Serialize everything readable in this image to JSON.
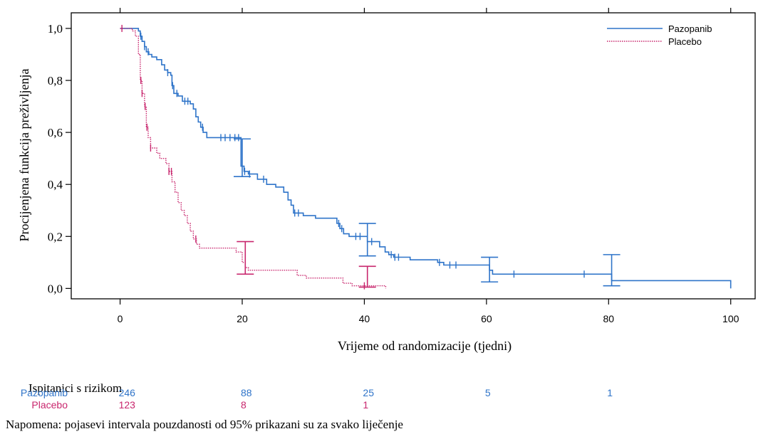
{
  "chart_data": {
    "type": "line",
    "xlabel": "Vrijeme od randomizacije (tjedni)",
    "ylabel": "Procijenjena funkcija preživljenja",
    "xlim": [
      -8,
      104
    ],
    "ylim": [
      -0.04,
      1.06
    ],
    "xticks": [
      0,
      20,
      40,
      60,
      80,
      100
    ],
    "yticks": [
      0.0,
      0.2,
      0.4,
      0.6,
      0.8,
      1.0
    ],
    "ytick_labels": [
      "0,0",
      "0,2",
      "0,4",
      "0,6",
      "0,8",
      "1,0"
    ],
    "legend_position": "top-right",
    "series": [
      {
        "name": "Pazopanib",
        "color": "#2f74c9",
        "dash": "solid",
        "points": [
          [
            0,
            1.0
          ],
          [
            2.5,
            1.0
          ],
          [
            3.0,
            0.99
          ],
          [
            3.3,
            0.97
          ],
          [
            3.6,
            0.95
          ],
          [
            4.0,
            0.93
          ],
          [
            4.3,
            0.91
          ],
          [
            4.7,
            0.9
          ],
          [
            5.2,
            0.89
          ],
          [
            6.0,
            0.88
          ],
          [
            6.8,
            0.86
          ],
          [
            7.3,
            0.84
          ],
          [
            7.8,
            0.83
          ],
          [
            8.3,
            0.82
          ],
          [
            8.5,
            0.78
          ],
          [
            8.8,
            0.75
          ],
          [
            9.5,
            0.74
          ],
          [
            10.2,
            0.72
          ],
          [
            11.5,
            0.71
          ],
          [
            12.0,
            0.69
          ],
          [
            12.4,
            0.66
          ],
          [
            12.8,
            0.64
          ],
          [
            13.2,
            0.62
          ],
          [
            13.6,
            0.6
          ],
          [
            14.2,
            0.58
          ],
          [
            19.5,
            0.58
          ],
          [
            19.8,
            0.47
          ],
          [
            20.3,
            0.45
          ],
          [
            21.0,
            0.44
          ],
          [
            22.5,
            0.42
          ],
          [
            24.0,
            0.4
          ],
          [
            25.5,
            0.39
          ],
          [
            26.8,
            0.37
          ],
          [
            27.5,
            0.34
          ],
          [
            28.0,
            0.32
          ],
          [
            28.4,
            0.29
          ],
          [
            30.0,
            0.28
          ],
          [
            32.0,
            0.27
          ],
          [
            35.5,
            0.25
          ],
          [
            36.0,
            0.23
          ],
          [
            36.6,
            0.21
          ],
          [
            37.5,
            0.2
          ],
          [
            40.5,
            0.18
          ],
          [
            42.5,
            0.16
          ],
          [
            43.4,
            0.14
          ],
          [
            44.0,
            0.13
          ],
          [
            44.8,
            0.12
          ],
          [
            47.5,
            0.11
          ],
          [
            52.0,
            0.1
          ],
          [
            53.0,
            0.09
          ],
          [
            60.0,
            0.09
          ],
          [
            60.5,
            0.07
          ],
          [
            61.0,
            0.055
          ],
          [
            80.0,
            0.055
          ],
          [
            80.5,
            0.03
          ],
          [
            100.0,
            0.03
          ],
          [
            100.0,
            0.0
          ]
        ],
        "censor_x": [
          3.4,
          4.0,
          4.6,
          7.8,
          8.6,
          9.3,
          10.6,
          11.1,
          13.5,
          16.5,
          17.2,
          18.0,
          18.8,
          19.4,
          20.4,
          21.2,
          23.5,
          28.6,
          29.2,
          35.8,
          36.3,
          38.6,
          39.3,
          41.2,
          44.4,
          45.0,
          45.6,
          52.3,
          54.0,
          55.0,
          64.5,
          76.0
        ],
        "error_bars": [
          {
            "x": 20,
            "lo": 0.43,
            "hi": 0.575
          },
          {
            "x": 40.5,
            "lo": 0.125,
            "hi": 0.25
          },
          {
            "x": 60.5,
            "lo": 0.025,
            "hi": 0.12
          },
          {
            "x": 80.5,
            "lo": 0.01,
            "hi": 0.13
          }
        ]
      },
      {
        "name": "Placebo",
        "color": "#c8266d",
        "dash": "dotted",
        "points": [
          [
            0,
            1.0
          ],
          [
            1.5,
            1.0
          ],
          [
            2.0,
            0.99
          ],
          [
            2.5,
            0.97
          ],
          [
            3.0,
            0.9
          ],
          [
            3.3,
            0.8
          ],
          [
            3.6,
            0.75
          ],
          [
            4.0,
            0.7
          ],
          [
            4.3,
            0.62
          ],
          [
            4.6,
            0.58
          ],
          [
            5.0,
            0.54
          ],
          [
            6.0,
            0.52
          ],
          [
            6.5,
            0.5
          ],
          [
            7.5,
            0.48
          ],
          [
            8.0,
            0.45
          ],
          [
            8.5,
            0.41
          ],
          [
            9.0,
            0.37
          ],
          [
            9.5,
            0.33
          ],
          [
            10.0,
            0.3
          ],
          [
            10.5,
            0.28
          ],
          [
            11.0,
            0.25
          ],
          [
            11.5,
            0.22
          ],
          [
            12.0,
            0.19
          ],
          [
            12.5,
            0.17
          ],
          [
            13.0,
            0.155
          ],
          [
            18.0,
            0.155
          ],
          [
            19.0,
            0.14
          ],
          [
            20.0,
            0.1
          ],
          [
            20.5,
            0.08
          ],
          [
            21.0,
            0.07
          ],
          [
            28.0,
            0.07
          ],
          [
            29.0,
            0.05
          ],
          [
            30.5,
            0.04
          ],
          [
            36.0,
            0.04
          ],
          [
            36.5,
            0.02
          ],
          [
            38.0,
            0.01
          ],
          [
            42.0,
            0.01
          ],
          [
            43.5,
            0.0
          ]
        ],
        "censor_x": [
          0.3,
          3.4,
          3.6,
          4.1,
          4.4,
          5.0,
          8.0,
          8.4,
          12.4,
          40.0
        ],
        "error_bars": [
          {
            "x": 20.5,
            "lo": 0.055,
            "hi": 0.18
          },
          {
            "x": 40.5,
            "lo": 0.005,
            "hi": 0.085
          }
        ]
      }
    ]
  },
  "risk_table": {
    "title": "Ispitanici s rizikom",
    "rows": [
      {
        "name": "Pazopanib",
        "color": "#2f74c9",
        "values": [
          {
            "x": 0,
            "label": "246"
          },
          {
            "x": 20,
            "label": "88"
          },
          {
            "x": 40,
            "label": "25"
          },
          {
            "x": 60,
            "label": "5"
          },
          {
            "x": 80,
            "label": "1"
          }
        ]
      },
      {
        "name": "Placebo",
        "color": "#c8266d",
        "values": [
          {
            "x": 0,
            "label": "123"
          },
          {
            "x": 20,
            "label": "8"
          },
          {
            "x": 40,
            "label": "1"
          }
        ]
      }
    ]
  },
  "note": "Napomena: pojasevi intervala pouzdanosti od 95% prikazani su za svako liječenje"
}
